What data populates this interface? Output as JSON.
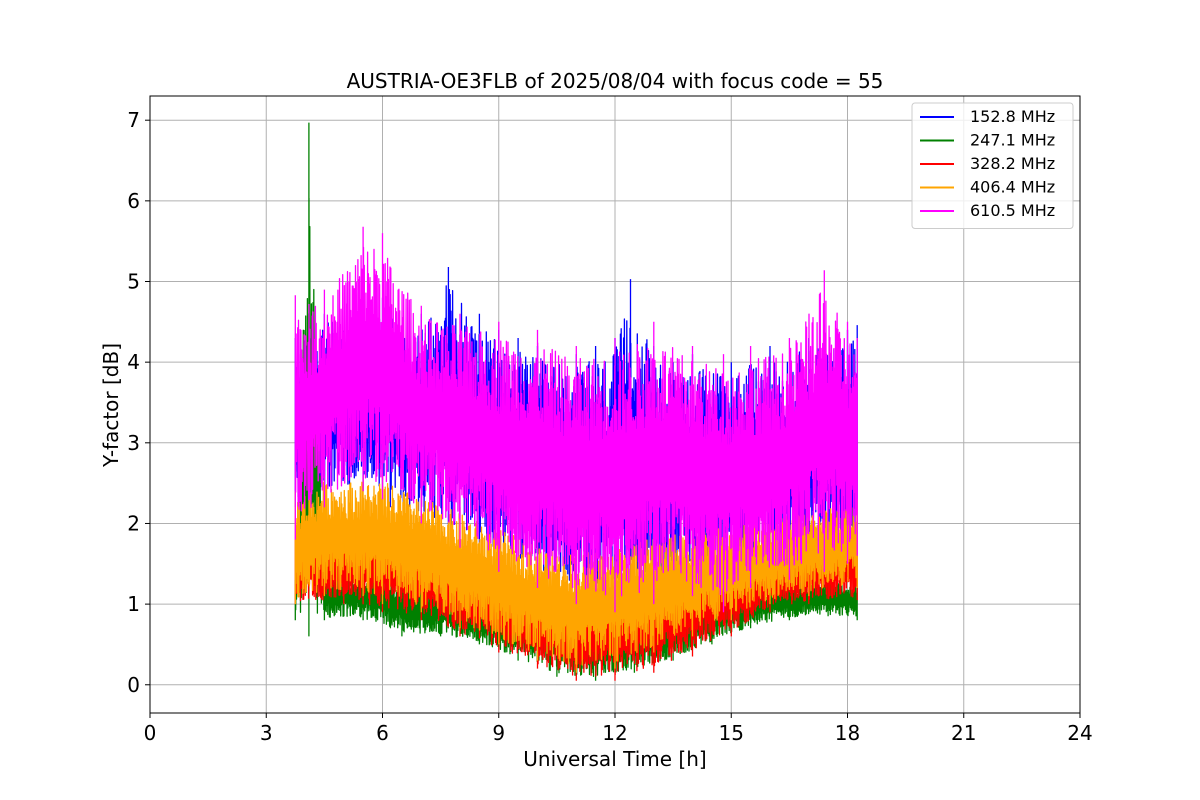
{
  "chart_data": {
    "type": "line",
    "title": "AUSTRIA-OE3FLB of 2025/08/04 with focus code = 55",
    "xlabel": "Universal Time [h]",
    "ylabel": "Y-factor [dB]",
    "xlim": [
      0,
      24
    ],
    "ylim": [
      -0.35,
      7.3
    ],
    "xticks": [
      0,
      3,
      6,
      9,
      12,
      15,
      18,
      21,
      24
    ],
    "yticks": [
      0,
      1,
      2,
      3,
      4,
      5,
      6,
      7
    ],
    "grid": true,
    "legend_position": "top-right",
    "series": [
      {
        "name": "152.8 MHz",
        "color": "#0000ff",
        "envelope": {
          "x": [
            3.75,
            4.5,
            5.5,
            6.0,
            6.2,
            7.0,
            7.7,
            8.5,
            9.0,
            9.5,
            10.0,
            11.0,
            11.5,
            12.0,
            12.4,
            13.0,
            13.5,
            14.0,
            15.0,
            16.0,
            17.0,
            18.0,
            18.25
          ],
          "low": [
            2.2,
            2.3,
            2.4,
            2.3,
            2.2,
            2.0,
            1.8,
            1.6,
            1.5,
            1.4,
            1.3,
            1.1,
            1.0,
            1.0,
            1.1,
            1.2,
            1.3,
            1.3,
            1.4,
            1.5,
            1.5,
            1.6,
            1.6
          ],
          "high": [
            4.3,
            4.6,
            4.7,
            4.8,
            4.7,
            4.6,
            5.18,
            4.6,
            4.4,
            4.3,
            4.2,
            4.1,
            4.2,
            4.3,
            5.03,
            4.2,
            4.0,
            4.1,
            4.0,
            4.2,
            4.3,
            4.4,
            4.46
          ]
        }
      },
      {
        "name": "247.1 MHz",
        "color": "#008000",
        "envelope": {
          "x": [
            3.75,
            4.1,
            4.5,
            5.5,
            6.5,
            7.5,
            8.5,
            9.5,
            10.5,
            11.5,
            12.5,
            13.5,
            14.5,
            15.5,
            16.5,
            17.5,
            18.25
          ],
          "low": [
            0.8,
            0.6,
            0.8,
            0.8,
            0.6,
            0.6,
            0.5,
            0.3,
            0.1,
            0.05,
            0.15,
            0.3,
            0.5,
            0.7,
            0.8,
            0.85,
            0.8
          ],
          "high": [
            1.3,
            6.97,
            1.4,
            1.4,
            1.3,
            1.2,
            1.1,
            1.0,
            0.9,
            0.8,
            0.9,
            1.0,
            1.1,
            1.2,
            1.3,
            1.3,
            1.3
          ]
        }
      },
      {
        "name": "328.2 MHz",
        "color": "#ff0000",
        "envelope": {
          "x": [
            3.75,
            5.0,
            6.0,
            7.0,
            8.0,
            9.0,
            10.0,
            11.0,
            12.0,
            13.0,
            14.0,
            15.0,
            16.0,
            17.0,
            18.25
          ],
          "low": [
            1.0,
            1.0,
            0.9,
            0.8,
            0.6,
            0.4,
            0.2,
            0.05,
            0.05,
            0.15,
            0.35,
            0.6,
            0.9,
            1.0,
            1.05
          ],
          "high": [
            1.8,
            2.0,
            1.9,
            1.8,
            1.6,
            1.4,
            1.2,
            1.1,
            1.2,
            1.4,
            1.6,
            1.7,
            1.8,
            1.9,
            1.9
          ]
        }
      },
      {
        "name": "406.4 MHz",
        "color": "#ffa500",
        "envelope": {
          "x": [
            3.75,
            4.5,
            5.5,
            6.0,
            7.0,
            8.0,
            9.0,
            10.0,
            11.0,
            12.0,
            13.0,
            14.0,
            15.0,
            16.0,
            17.0,
            18.25
          ],
          "low": [
            1.0,
            1.1,
            1.1,
            1.0,
            0.9,
            0.7,
            0.5,
            0.3,
            0.15,
            0.2,
            0.4,
            0.6,
            0.8,
            1.0,
            1.1,
            1.2
          ],
          "high": [
            2.4,
            2.6,
            2.6,
            2.6,
            2.4,
            2.2,
            2.0,
            1.8,
            1.7,
            1.8,
            1.9,
            2.0,
            2.0,
            2.1,
            2.2,
            2.3
          ]
        }
      },
      {
        "name": "610.5 MHz",
        "color": "#ff00ff",
        "envelope": {
          "x": [
            3.75,
            4.5,
            5.5,
            6.0,
            7.0,
            8.0,
            9.0,
            10.0,
            11.0,
            12.0,
            13.0,
            14.0,
            14.8,
            15.5,
            16.5,
            17.4,
            18.0,
            18.25
          ],
          "low": [
            1.8,
            2.2,
            2.4,
            2.3,
            2.0,
            1.7,
            1.4,
            1.2,
            1.0,
            0.9,
            1.0,
            1.1,
            0.9,
            1.2,
            1.3,
            1.4,
            1.5,
            1.6
          ],
          "high": [
            4.83,
            4.9,
            5.68,
            5.6,
            4.7,
            4.6,
            4.5,
            4.4,
            4.2,
            4.3,
            4.5,
            4.2,
            4.1,
            4.2,
            4.3,
            5.14,
            4.5,
            4.3
          ]
        }
      }
    ]
  }
}
